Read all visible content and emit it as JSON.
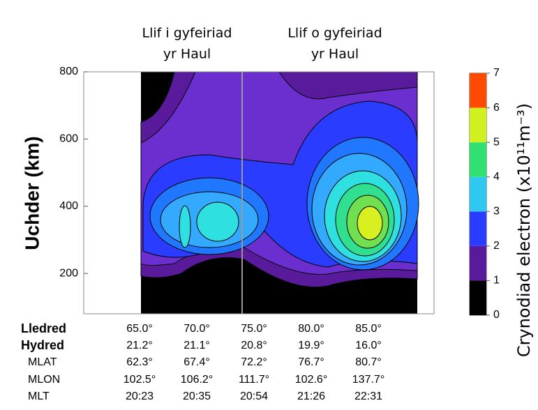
{
  "chart_data": {
    "type": "contour",
    "annotations": [
      [
        "Llif i gyfeiriad",
        "yr Haul"
      ],
      [
        "Llif o gyfeiriad",
        "yr Haul"
      ]
    ],
    "y_axis_label": "Uchder (km)",
    "ylim": [
      80,
      800
    ],
    "yticks": [
      200,
      400,
      600,
      800
    ],
    "colorbar": {
      "label": "Crynodiad electron (x10¹¹m⁻³)",
      "ticks": [
        0,
        1,
        2,
        3,
        4,
        5,
        6,
        7
      ],
      "colors": [
        "#000000",
        "#5a1a9c",
        "#2a3cff",
        "#2fc8f0",
        "#30e070",
        "#d0f020",
        "#ff4a00"
      ]
    }
  },
  "table": {
    "row_labels": [
      "Lledred",
      "Hydred",
      "MLAT",
      "MLON",
      "MLT"
    ],
    "rows": [
      [
        "65.0°",
        "70.0°",
        "75.0°",
        "80.0°",
        "85.0°"
      ],
      [
        "21.2°",
        "21.1°",
        "20.8°",
        "19.9°",
        "16.0°"
      ],
      [
        "62.3°",
        "67.4°",
        "72.2°",
        "76.7°",
        "80.7°"
      ],
      [
        "102.5°",
        "106.2°",
        "111.7°",
        "102.6°",
        "137.7°"
      ],
      [
        "20:23",
        "20:35",
        "20:54",
        "21:26",
        "22:31"
      ]
    ]
  }
}
